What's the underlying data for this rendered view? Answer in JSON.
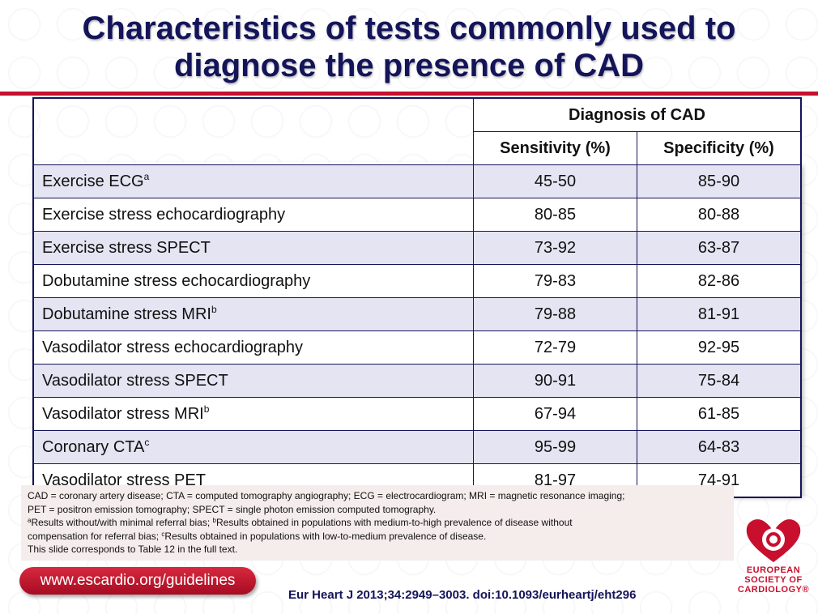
{
  "title_line1": "Characteristics of tests commonly used to",
  "title_line2": "diagnose the presence of CAD",
  "table": {
    "group_header": "Diagnosis of CAD",
    "col_sensitivity": "Sensitivity (%)",
    "col_specificity": "Specificity (%)",
    "rows": [
      {
        "test": "Exercise ECG",
        "sup": "a",
        "sensitivity": "45-50",
        "specificity": "85-90"
      },
      {
        "test": "Exercise stress echocardiography",
        "sup": "",
        "sensitivity": "80-85",
        "specificity": "80-88"
      },
      {
        "test": "Exercise stress SPECT",
        "sup": "",
        "sensitivity": "73-92",
        "specificity": "63-87"
      },
      {
        "test": "Dobutamine stress echocardiography",
        "sup": "",
        "sensitivity": "79-83",
        "specificity": "82-86"
      },
      {
        "test": "Dobutamine stress MRI",
        "sup": "b",
        "sensitivity": "79-88",
        "specificity": "81-91"
      },
      {
        "test": "Vasodilator stress echocardiography",
        "sup": "",
        "sensitivity": "72-79",
        "specificity": "92-95"
      },
      {
        "test": "Vasodilator stress SPECT",
        "sup": "",
        "sensitivity": "90-91",
        "specificity": "75-84"
      },
      {
        "test": "Vasodilator stress MRI",
        "sup": "b",
        "sensitivity": "67-94",
        "specificity": "61-85"
      },
      {
        "test": "Coronary CTA",
        "sup": "c",
        "sensitivity": "95-99",
        "specificity": "64-83"
      },
      {
        "test": "Vasodilator stress PET",
        "sup": "",
        "sensitivity": "81-97",
        "specificity": "74-91"
      }
    ]
  },
  "footnote": {
    "line1": "CAD = coronary artery disease; CTA = computed tomography angiography; ECG = electrocardiogram; MRI = magnetic resonance imaging;",
    "line2": "PET = positron emission tomography; SPECT = single photon emission computed tomography.",
    "sup_a": "a",
    "line3a": "Results without/with minimal referral bias; ",
    "sup_b": "b",
    "line3b": "Results obtained in populations with medium-to-high prevalence of disease without",
    "line4a": "compensation for referral bias; ",
    "sup_c": "c",
    "line4b": "Results obtained in populations with low-to-medium prevalence of disease.",
    "line5": "This slide corresponds to Table 12 in the full text."
  },
  "footer": {
    "url": "www.escardio.org/guidelines",
    "citation": "Eur Heart J  2013;34:2949–3003. doi:10.1093/eurheartj/eht296",
    "logo_line1": "EUROPEAN",
    "logo_line2": "SOCIETY OF",
    "logo_line3": "CARDIOLOGY®"
  },
  "colors": {
    "title": "#14145a",
    "accent_red": "#c8102e",
    "row_shade": "#e4e4f2",
    "footnote_bg": "#f5ecec"
  }
}
